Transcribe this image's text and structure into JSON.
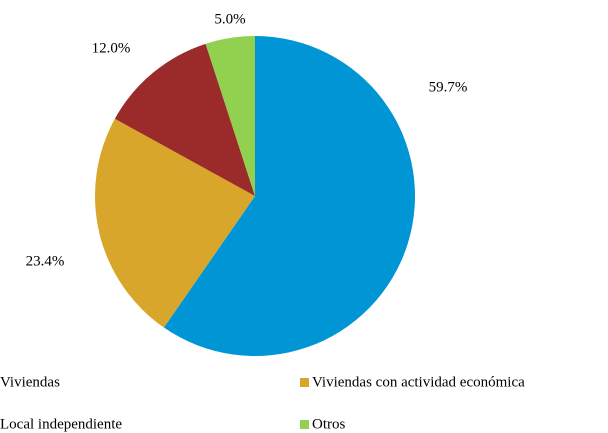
{
  "chart_data": {
    "type": "pie",
    "categories": [
      "Viviendas",
      "Viviendas con actividad económica",
      "Local independiente",
      "Otros"
    ],
    "values": [
      59.7,
      23.4,
      12.0,
      5.0
    ],
    "value_labels": [
      "59.7%",
      "23.4%",
      "12.0%",
      "5.0%"
    ],
    "colors": [
      "#0096d6",
      "#d8a62b",
      "#9b2a2a",
      "#92d050"
    ],
    "legend": "bottom"
  }
}
